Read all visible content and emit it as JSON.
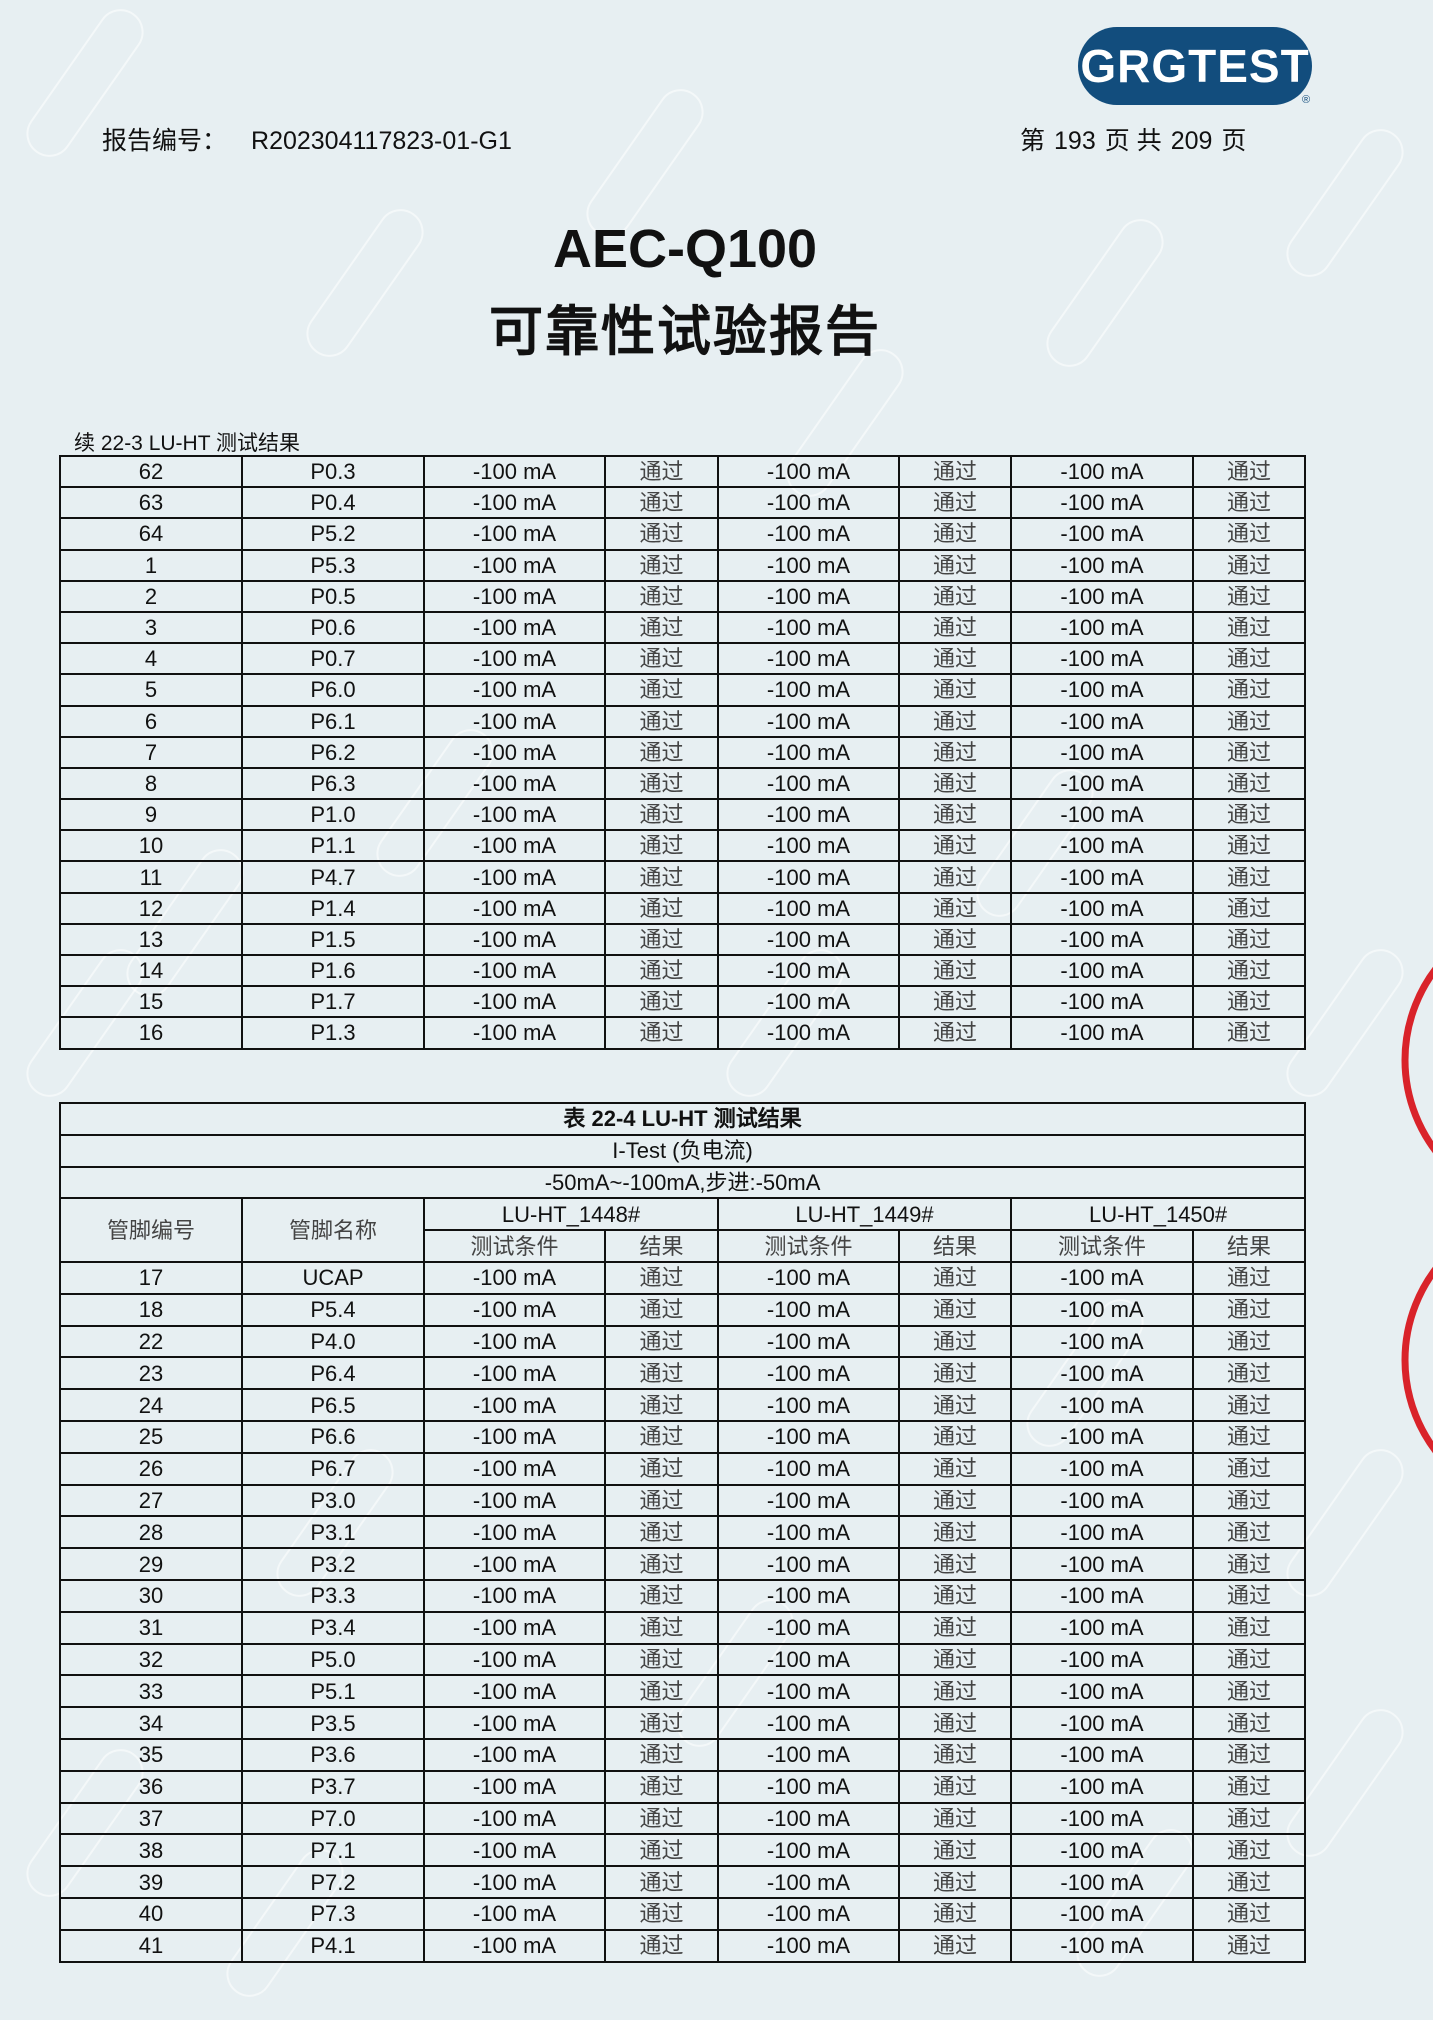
{
  "header": {
    "logo": "GRGTEST",
    "report_no_label": "报告编号：",
    "report_no": "R202304117823-01-G1",
    "page": {
      "prefix": "第",
      "current": "193",
      "mid": "页 共",
      "total": "209",
      "suffix": "页"
    }
  },
  "title": {
    "line1": "AEC-Q100",
    "line2": "可靠性试验报告"
  },
  "table1": {
    "caption": "续 22-3 LU-HT 测试结果",
    "rows": [
      [
        "62",
        "P0.3"
      ],
      [
        "63",
        "P0.4"
      ],
      [
        "64",
        "P5.2"
      ],
      [
        "1",
        "P5.3"
      ],
      [
        "2",
        "P0.5"
      ],
      [
        "3",
        "P0.6"
      ],
      [
        "4",
        "P0.7"
      ],
      [
        "5",
        "P6.0"
      ],
      [
        "6",
        "P6.1"
      ],
      [
        "7",
        "P6.2"
      ],
      [
        "8",
        "P6.3"
      ],
      [
        "9",
        "P1.0"
      ],
      [
        "10",
        "P1.1"
      ],
      [
        "11",
        "P4.7"
      ],
      [
        "12",
        "P1.4"
      ],
      [
        "13",
        "P1.5"
      ],
      [
        "14",
        "P1.6"
      ],
      [
        "15",
        "P1.7"
      ],
      [
        "16",
        "P1.3"
      ]
    ]
  },
  "table2": {
    "title": "表 22-4 LU-HT 测试结果",
    "test_type": "I-Test (负电流)",
    "range": "-50mA~-100mA,步进:-50mA",
    "col_pin_no": "管脚编号",
    "col_pin_name": "管脚名称",
    "samples": [
      "LU-HT_1448#",
      "LU-HT_1449#",
      "LU-HT_1450#"
    ],
    "col_condition": "测试条件",
    "col_result": "结果",
    "rows": [
      [
        "17",
        "UCAP"
      ],
      [
        "18",
        "P5.4"
      ],
      [
        "22",
        "P4.0"
      ],
      [
        "23",
        "P6.4"
      ],
      [
        "24",
        "P6.5"
      ],
      [
        "25",
        "P6.6"
      ],
      [
        "26",
        "P6.7"
      ],
      [
        "27",
        "P3.0"
      ],
      [
        "28",
        "P3.1"
      ],
      [
        "29",
        "P3.2"
      ],
      [
        "30",
        "P3.3"
      ],
      [
        "31",
        "P3.4"
      ],
      [
        "32",
        "P5.0"
      ],
      [
        "33",
        "P5.1"
      ],
      [
        "34",
        "P3.5"
      ],
      [
        "35",
        "P3.6"
      ],
      [
        "36",
        "P3.7"
      ],
      [
        "37",
        "P7.0"
      ],
      [
        "38",
        "P7.1"
      ],
      [
        "39",
        "P7.2"
      ],
      [
        "40",
        "P7.3"
      ],
      [
        "41",
        "P4.1"
      ]
    ]
  },
  "cell_values": {
    "condition": "-100 mA",
    "result": "通过"
  },
  "watermark": "GRGTEST",
  "colors": {
    "background": "#e7eff2",
    "logo": "#124d7d",
    "stamp": "#d9232a"
  }
}
